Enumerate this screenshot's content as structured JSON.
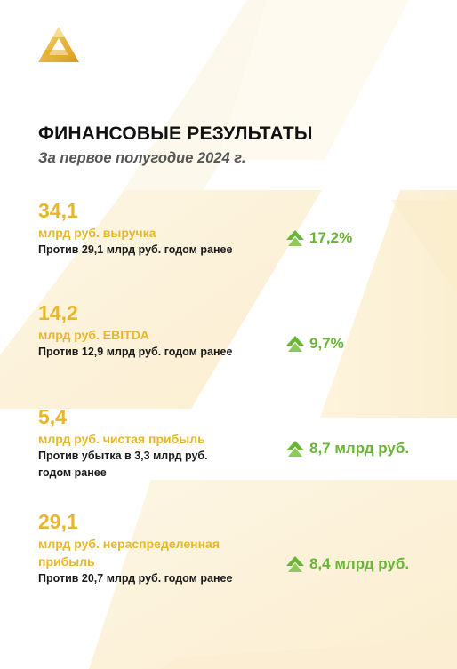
{
  "header": {
    "title": "ФИНАНСОВЫЕ РЕЗУЛЬТАТЫ",
    "subtitle": "За первое полугодие 2024 г."
  },
  "metrics": [
    {
      "value": "34,1",
      "label": "млрд руб. выручка",
      "note": "Против 29,1 млрд руб. годом ранее",
      "change": "17,2%"
    },
    {
      "value": "14,2",
      "label": "млрд руб. EBITDA",
      "note": "Против 12,9 млрд руб. годом ранее",
      "change": "9,7%"
    },
    {
      "value": "5,4",
      "label": "млрд руб. чистая прибыль",
      "note": "Против убытка в 3,3 млрд руб. годом ранее",
      "change": "8,7 млрд руб."
    },
    {
      "value": "29,1",
      "label": "млрд руб. нераспределенная прибыль",
      "note": "Против 20,7 млрд руб. годом ранее",
      "change": "8,4 млрд руб."
    }
  ],
  "colors": {
    "accent": "#e8b62a",
    "positive": "#6bb43a",
    "text": "#111111",
    "subtitle": "#555555"
  },
  "icons": {
    "logo": "triangle-logo",
    "trend": "arrow-up-icon"
  }
}
